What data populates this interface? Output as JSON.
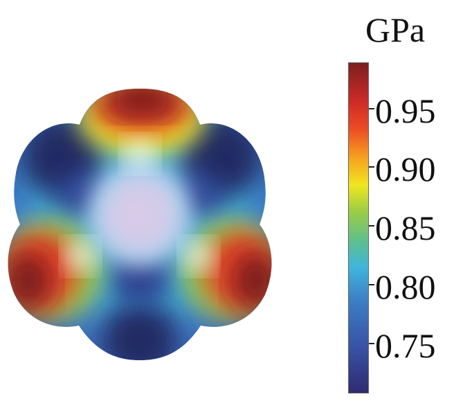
{
  "colorbar": {
    "unit": "GPa",
    "ticks": [
      {
        "label": "0.95",
        "value": 0.95
      },
      {
        "label": "0.90",
        "value": 0.9
      },
      {
        "label": "0.85",
        "value": 0.85
      },
      {
        "label": "0.80",
        "value": 0.8
      },
      {
        "label": "0.75",
        "value": 0.75
      }
    ],
    "colors": {
      "low": "#2f2b72",
      "mid": "#3fb5dc",
      "mid_high": "#f0e620",
      "high": "#7c1f1f"
    }
  },
  "surface": {
    "shape": "hexagonal-rounded",
    "hotspots": 3,
    "center_color": "#d7cbe8"
  }
}
